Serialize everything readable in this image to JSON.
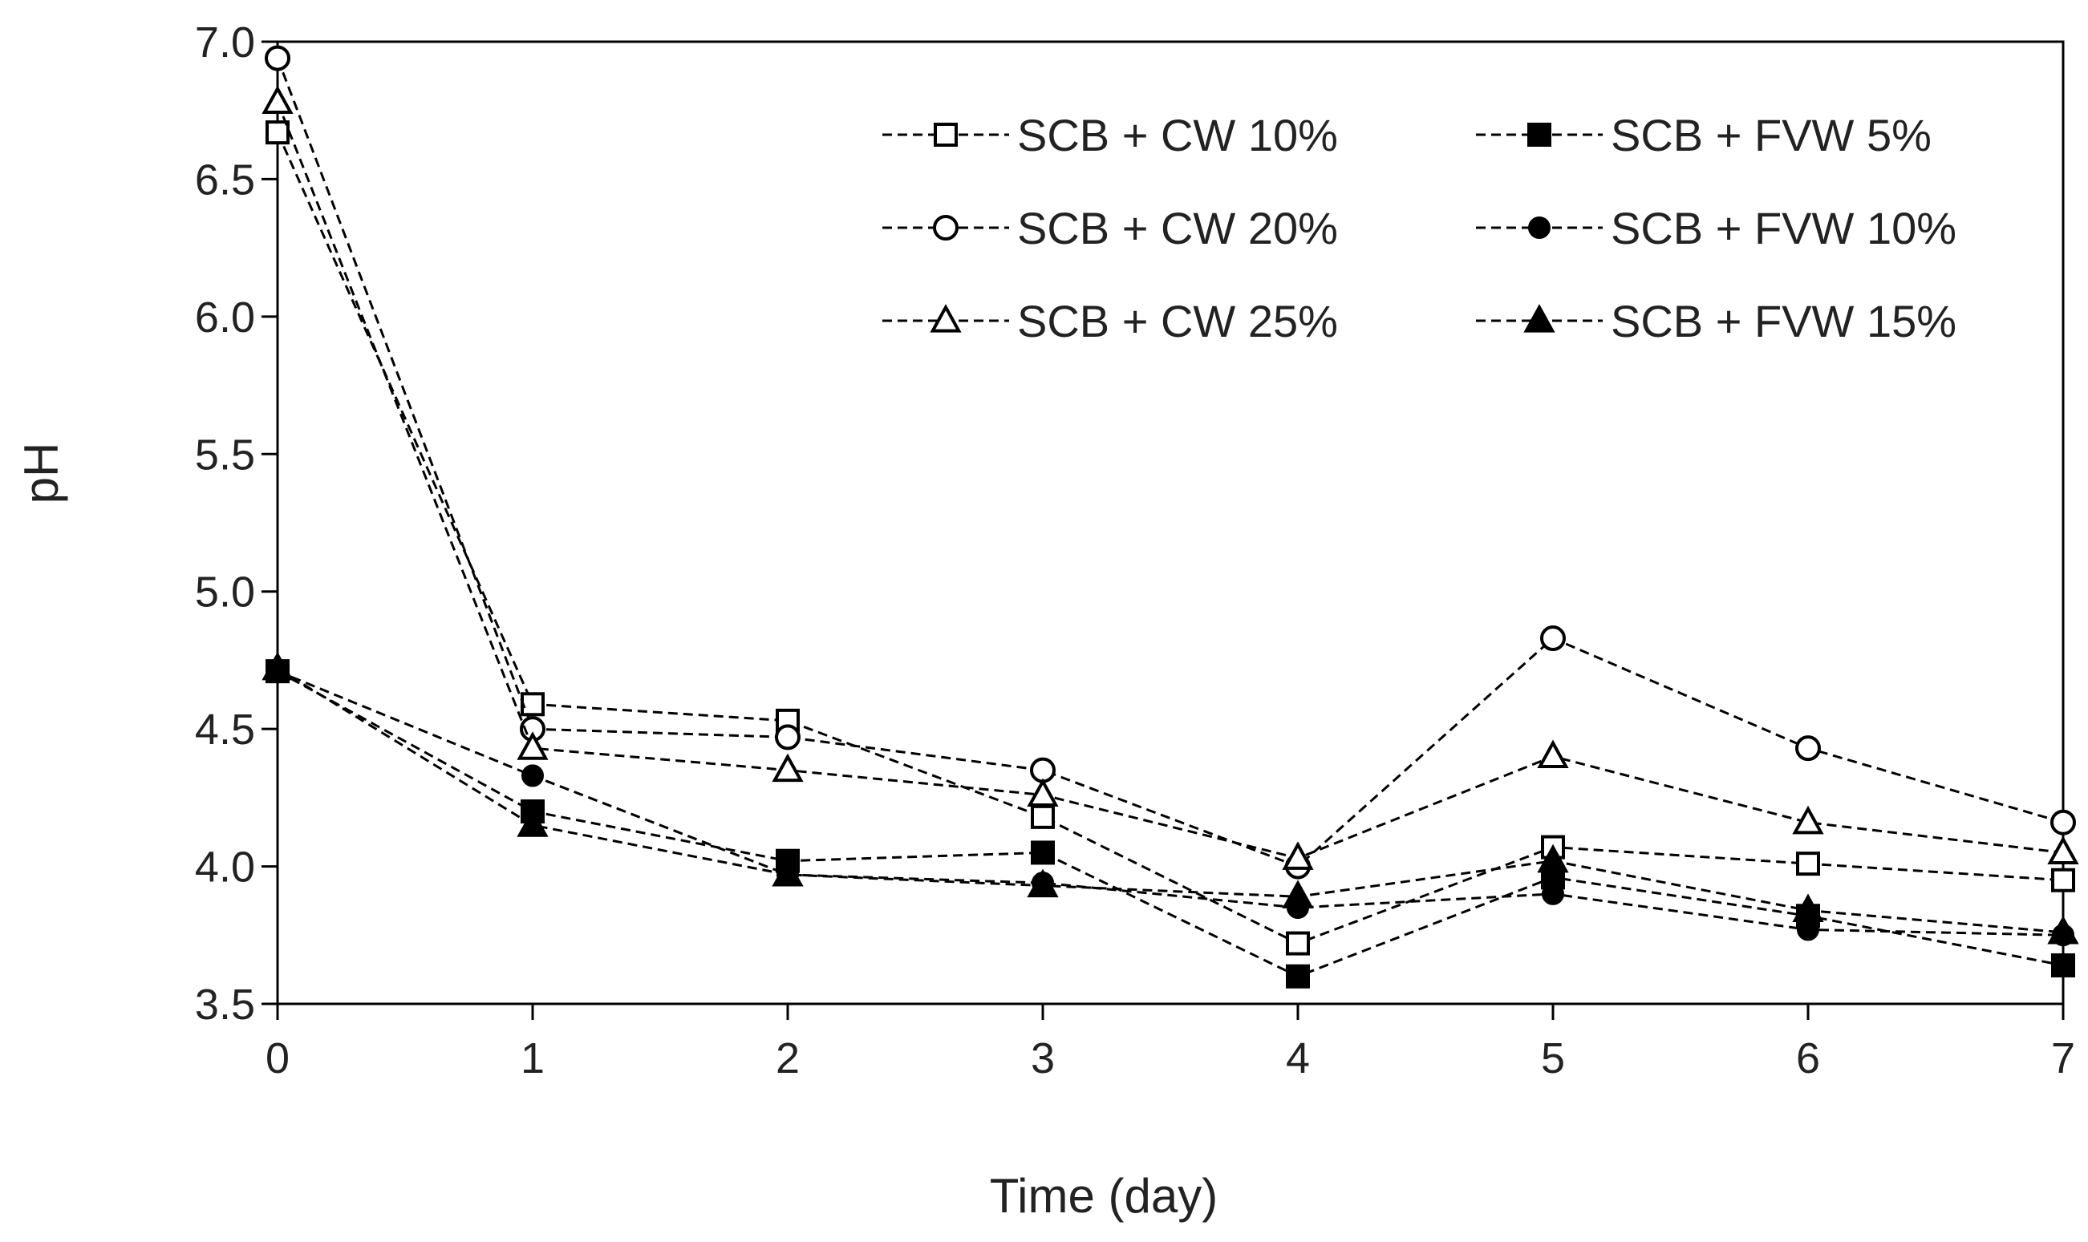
{
  "chart_data": {
    "type": "line",
    "title": "",
    "xlabel": "Time (day)",
    "ylabel": "pH",
    "x": [
      0,
      1,
      2,
      3,
      4,
      5,
      6,
      7
    ],
    "xlim": [
      0,
      7
    ],
    "ylim": [
      3.5,
      7.0
    ],
    "xticks": [
      "0",
      "1",
      "2",
      "3",
      "4",
      "5",
      "6",
      "7"
    ],
    "yticks": [
      "3.5",
      "4.0",
      "4.5",
      "5.0",
      "5.5",
      "6.0",
      "6.5",
      "7.0"
    ],
    "grid": false,
    "legend_position": "top-right",
    "line_style": "dashed",
    "line_color": "#000000",
    "series": [
      {
        "name": "SCB + CW 10%",
        "marker": "square-open",
        "values": [
          6.67,
          4.59,
          4.53,
          4.18,
          3.72,
          4.07,
          4.01,
          3.95
        ]
      },
      {
        "name": "SCB + CW 20%",
        "marker": "circle-open",
        "values": [
          6.94,
          4.5,
          4.47,
          4.35,
          4.0,
          4.83,
          4.43,
          4.16
        ]
      },
      {
        "name": "SCB + CW 25%",
        "marker": "triangle-open",
        "values": [
          6.78,
          4.43,
          4.35,
          4.26,
          4.03,
          4.4,
          4.16,
          4.05
        ]
      },
      {
        "name": "SCB + FVW 5%",
        "marker": "square-filled",
        "values": [
          4.71,
          4.2,
          4.02,
          4.05,
          3.6,
          3.96,
          3.82,
          3.64
        ]
      },
      {
        "name": "SCB + FVW 10%",
        "marker": "circle-filled",
        "values": [
          4.71,
          4.33,
          3.97,
          3.94,
          3.85,
          3.9,
          3.77,
          3.75
        ]
      },
      {
        "name": "SCB + FVW 15%",
        "marker": "triangle-filled",
        "values": [
          4.72,
          4.15,
          3.97,
          3.93,
          3.89,
          4.02,
          3.84,
          3.76
        ]
      }
    ]
  }
}
